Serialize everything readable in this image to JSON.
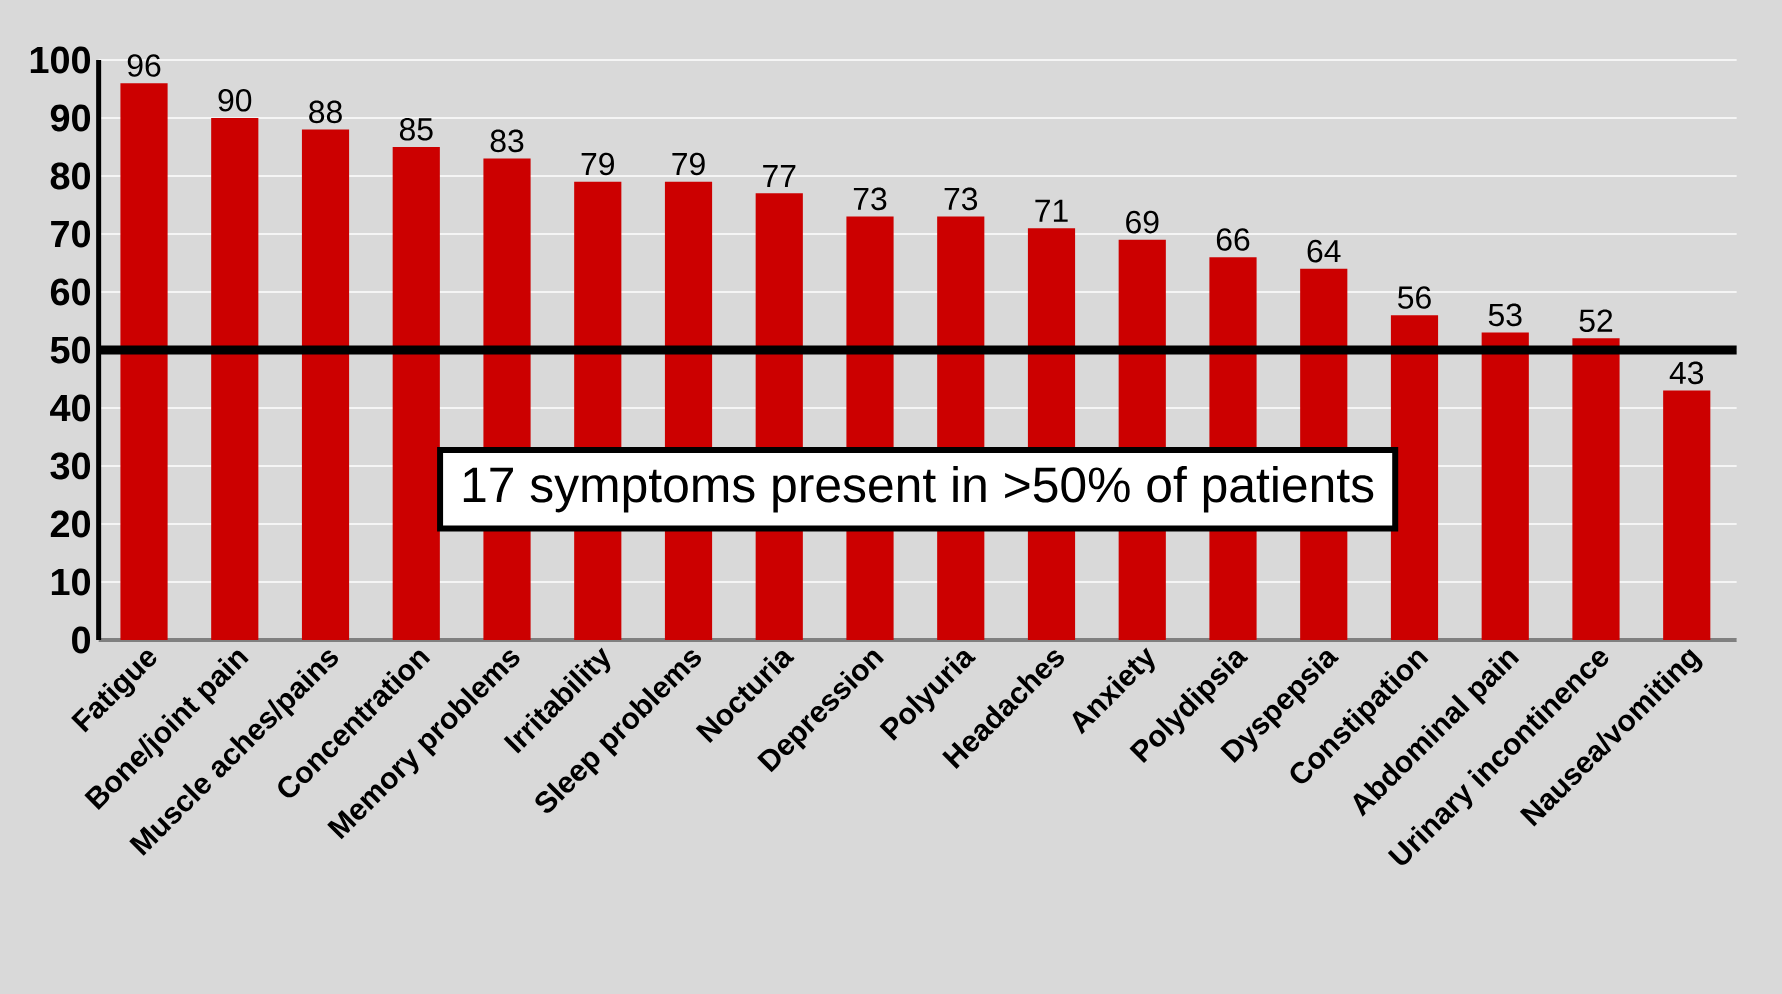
{
  "chart_data": {
    "type": "bar",
    "categories": [
      "Fatigue",
      "Bone/joint pain",
      "Muscle aches/pains",
      "Concentration",
      "Memory problems",
      "Irritability",
      "Sleep problems",
      "Nocturia",
      "Depression",
      "Polyuria",
      "Headaches",
      "Anxiety",
      "Polydipsia",
      "Dyspepsia",
      "Constipation",
      "Abdominal pain",
      "Urinary incontinence",
      "Nausea/vomiting"
    ],
    "values": [
      96,
      90,
      88,
      85,
      83,
      79,
      79,
      77,
      73,
      73,
      71,
      69,
      66,
      64,
      56,
      53,
      52,
      43
    ],
    "color": "#cc0000",
    "ylim": [
      0,
      100
    ],
    "yticks": [
      0,
      10,
      20,
      30,
      40,
      50,
      60,
      70,
      80,
      90,
      100
    ],
    "grid": "y",
    "data_labels": true,
    "ref_lines": [
      {
        "axis": "y",
        "value": 50,
        "color": "#000000"
      }
    ],
    "annotations": [
      "17 symptoms present in >50% of patients"
    ]
  }
}
